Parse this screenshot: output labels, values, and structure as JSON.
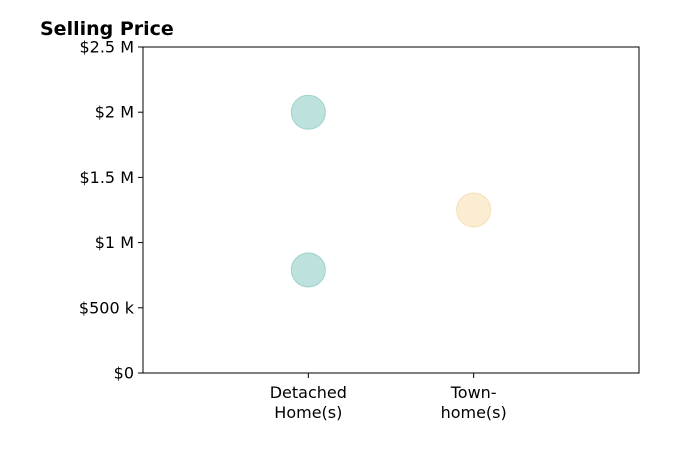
{
  "chart_data": {
    "type": "scatter",
    "title": "Selling Price",
    "xlabel": "",
    "ylabel": "",
    "categories": [
      [
        "Detached",
        "Home(s)"
      ],
      [
        "Town-",
        "home(s)"
      ]
    ],
    "xlim": [
      -1,
      2
    ],
    "ylim": [
      0,
      2500000
    ],
    "y_ticks": [
      {
        "value": 0,
        "label": "$0"
      },
      {
        "value": 500000,
        "label": "$500 k"
      },
      {
        "value": 1000000,
        "label": "$1 M"
      },
      {
        "value": 1500000,
        "label": "$1.5 M"
      },
      {
        "value": 2000000,
        "label": "$2 M"
      },
      {
        "value": 2500000,
        "label": "$2.5 M"
      }
    ],
    "grid": false,
    "points": [
      {
        "category_index": 0,
        "y": 2000000,
        "color": "#bde1dd",
        "stroke": "#9fd2cc"
      },
      {
        "category_index": 0,
        "y": 790000,
        "color": "#bde1dd",
        "stroke": "#9fd2cc"
      },
      {
        "category_index": 1,
        "y": 1250000,
        "color": "#fbedd2",
        "stroke": "#f5e0b8"
      }
    ]
  }
}
